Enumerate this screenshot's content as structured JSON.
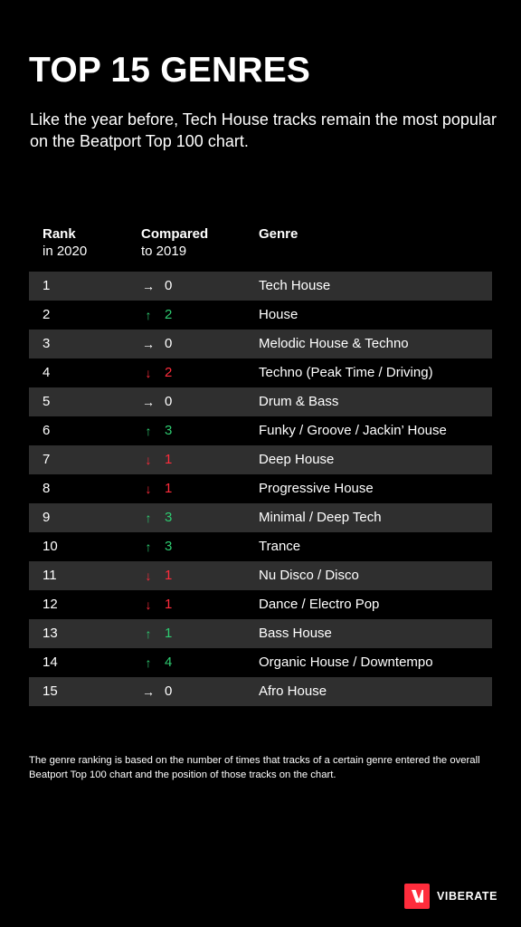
{
  "header": {
    "title": "TOP 15 GENRES",
    "subtitle": "Like the year before, Tech House tracks remain the most popular on the Beatport Top 100 chart."
  },
  "colors": {
    "background": "#000000",
    "row_shade": "#2f2f2f",
    "up": "#2ecc71",
    "down": "#ff2c3c",
    "same": "#ffffff",
    "brand": "#ff2c3c"
  },
  "icons": {
    "up": "arrow-up-icon",
    "down": "arrow-down-icon",
    "same": "arrow-right-icon"
  },
  "chart_data": {
    "type": "table",
    "columns": [
      {
        "line1": "Rank",
        "line2": "in 2020"
      },
      {
        "line1": "Compared",
        "line2": "to 2019"
      },
      {
        "line1": "Genre",
        "line2": ""
      }
    ],
    "rows": [
      {
        "rank": "1",
        "direction": "same",
        "change": "0",
        "genre": "Tech House"
      },
      {
        "rank": "2",
        "direction": "up",
        "change": "2",
        "genre": "House"
      },
      {
        "rank": "3",
        "direction": "same",
        "change": "0",
        "genre": "Melodic House & Techno"
      },
      {
        "rank": "4",
        "direction": "down",
        "change": "2",
        "genre": "Techno (Peak Time / Driving)"
      },
      {
        "rank": "5",
        "direction": "same",
        "change": "0",
        "genre": "Drum & Bass"
      },
      {
        "rank": "6",
        "direction": "up",
        "change": "3",
        "genre": "Funky / Groove / Jackin’ House"
      },
      {
        "rank": "7",
        "direction": "down",
        "change": "1",
        "genre": "Deep House"
      },
      {
        "rank": "8",
        "direction": "down",
        "change": "1",
        "genre": "Progressive House"
      },
      {
        "rank": "9",
        "direction": "up",
        "change": "3",
        "genre": "Minimal / Deep Tech"
      },
      {
        "rank": "10",
        "direction": "up",
        "change": "3",
        "genre": "Trance"
      },
      {
        "rank": "11",
        "direction": "down",
        "change": "1",
        "genre": "Nu Disco / Disco"
      },
      {
        "rank": "12",
        "direction": "down",
        "change": "1",
        "genre": "Dance / Electro Pop"
      },
      {
        "rank": "13",
        "direction": "up",
        "change": "1",
        "genre": "Bass House"
      },
      {
        "rank": "14",
        "direction": "up",
        "change": "4",
        "genre": "Organic House / Downtempo"
      },
      {
        "rank": "15",
        "direction": "same",
        "change": "0",
        "genre": "Afro House"
      }
    ]
  },
  "footnote": "The genre ranking is based on the number of times that tracks of a certain genre entered the overall Beatport Top 100 chart  and the position of those tracks on the chart.",
  "brand": {
    "name": "VIBERATE",
    "logo_letter": "V"
  }
}
